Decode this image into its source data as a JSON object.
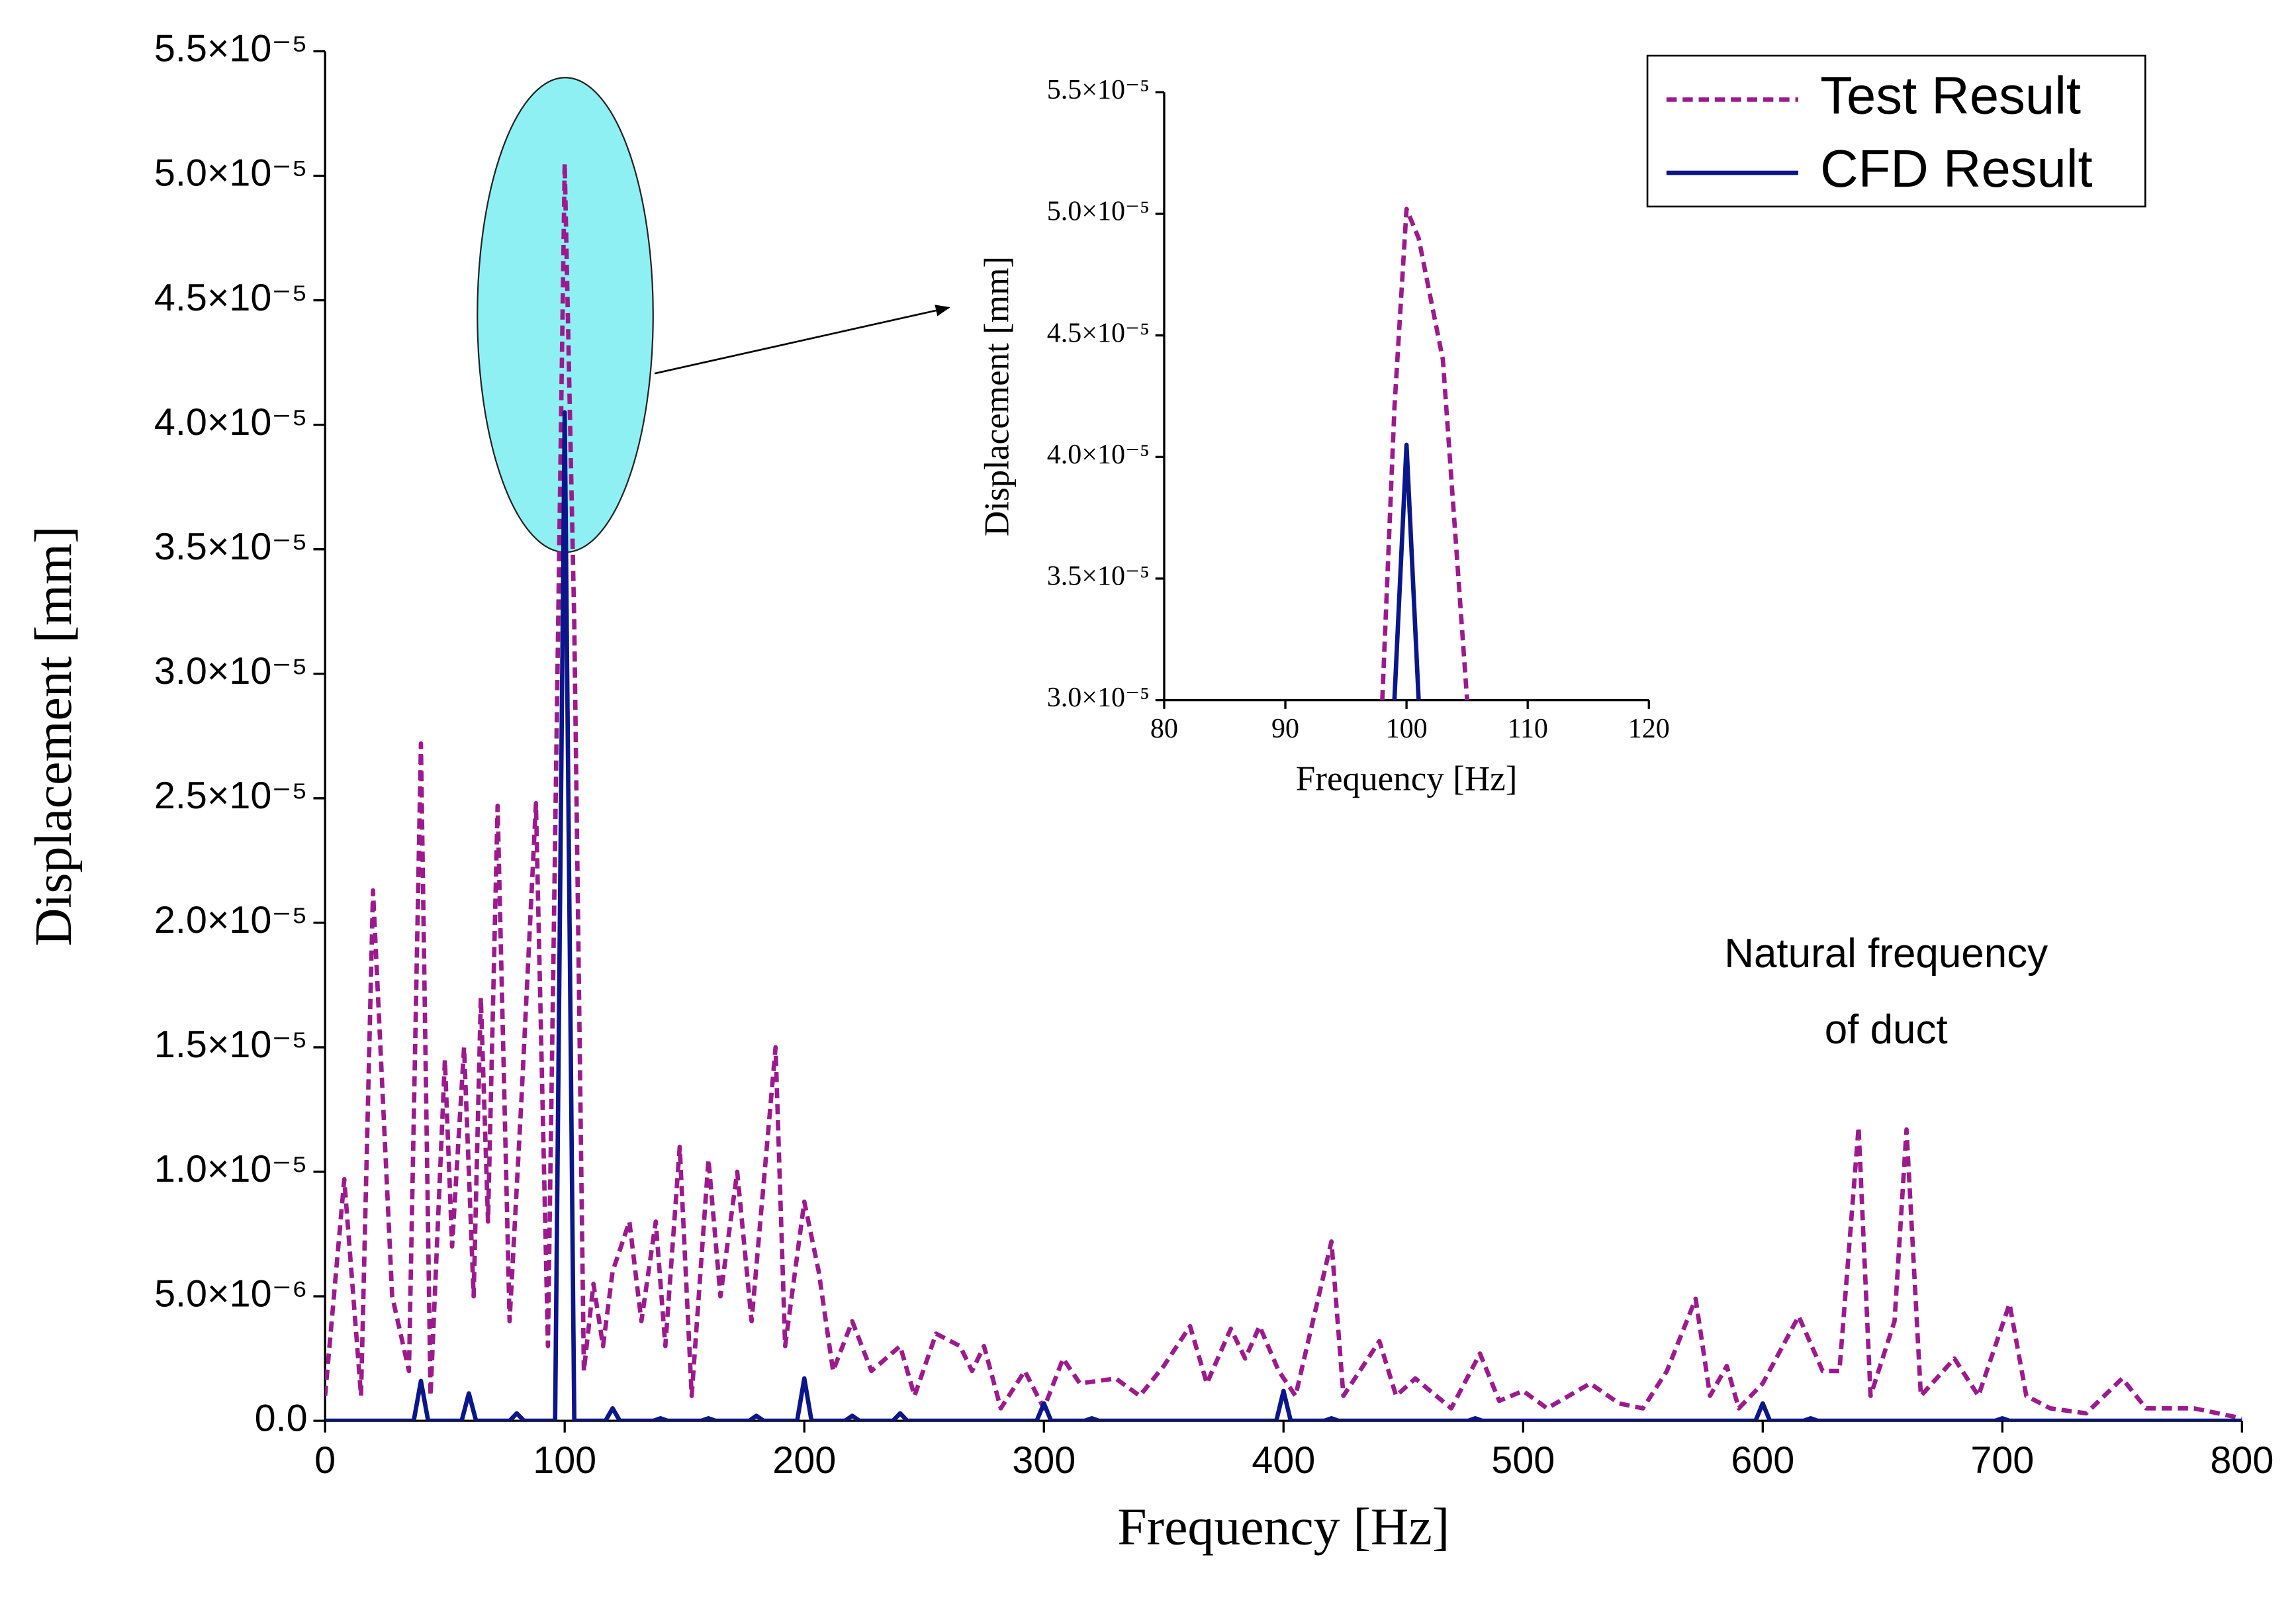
{
  "chart_data": [
    {
      "type": "line",
      "xlabel": "Frequency [Hz]",
      "ylabel": "Displacement [mm]",
      "xlim": [
        0,
        800
      ],
      "xticks": [
        0,
        100,
        200,
        300,
        400,
        500,
        600,
        700,
        800
      ],
      "ylim": [
        0,
        5.5e-05
      ],
      "yticks": [
        {
          "value": 0,
          "label": "0.0"
        },
        {
          "value": 5e-06,
          "label": "5.0×10⁻⁶"
        },
        {
          "value": 1e-05,
          "label": "1.0×10⁻⁵"
        },
        {
          "value": 1.5e-05,
          "label": "1.5×10⁻⁵"
        },
        {
          "value": 2e-05,
          "label": "2.0×10⁻⁵"
        },
        {
          "value": 2.5e-05,
          "label": "2.5×10⁻⁵"
        },
        {
          "value": 3e-05,
          "label": "3.0×10⁻⁵"
        },
        {
          "value": 3.5e-05,
          "label": "3.5×10⁻⁵"
        },
        {
          "value": 4e-05,
          "label": "4.0×10⁻⁵"
        },
        {
          "value": 4.5e-05,
          "label": "4.5×10⁻⁵"
        },
        {
          "value": 5e-05,
          "label": "5.0×10⁻⁵"
        },
        {
          "value": 5.5e-05,
          "label": "5.5×10⁻⁵"
        }
      ],
      "legend": "top-right",
      "annotation": [
        "Natural frequency",
        "of duct"
      ],
      "series": [
        {
          "name": "Test Result",
          "color": "#9c1a8e",
          "style": "dashed",
          "x": [
            0,
            8,
            15,
            20,
            28,
            35,
            40,
            44,
            50,
            53,
            58,
            62,
            65,
            68,
            72,
            77,
            82,
            88,
            93,
            100,
            104,
            108,
            112,
            116,
            120,
            127,
            132,
            138,
            142,
            148,
            153,
            160,
            165,
            172,
            178,
            188,
            192,
            200,
            206,
            212,
            220,
            228,
            240,
            246,
            255,
            265,
            270,
            275,
            282,
            292,
            300,
            308,
            315,
            330,
            340,
            350,
            361,
            368,
            378,
            384,
            390,
            398,
            405,
            420,
            425,
            440,
            447,
            455,
            470,
            482,
            490,
            500,
            510,
            528,
            540,
            550,
            560,
            572,
            578,
            585,
            590,
            600,
            615,
            625,
            632,
            640,
            645,
            655,
            660,
            666,
            680,
            690,
            703,
            710,
            720,
            735,
            750,
            760,
            780,
            800
          ],
          "values": [
            1e-06,
            9.7e-06,
            1e-06,
            2.13e-05,
            5e-06,
            2e-06,
            2.72e-05,
            1e-06,
            1.45e-05,
            7e-06,
            1.5e-05,
            5e-06,
            1.7e-05,
            8e-06,
            2.47e-05,
            4e-06,
            1.3e-05,
            2.48e-05,
            3e-06,
            5.05e-05,
            3.2e-05,
            2e-06,
            5.5e-06,
            3e-06,
            6e-06,
            8e-06,
            4e-06,
            8e-06,
            3e-06,
            1.1e-05,
            1e-06,
            1.05e-05,
            5e-06,
            1e-05,
            4e-06,
            1.5e-05,
            3e-06,
            8.8e-06,
            6e-06,
            2e-06,
            4e-06,
            2e-06,
            3e-06,
            1e-06,
            3.5e-06,
            3e-06,
            2e-06,
            3e-06,
            5e-07,
            2e-06,
            5e-07,
            2.5e-06,
            1.5e-06,
            1.7e-06,
            1e-06,
            2.2e-06,
            3.8e-06,
            1.5e-06,
            3.7e-06,
            2.5e-06,
            3.8e-06,
            2e-06,
            1e-06,
            7.2e-06,
            1e-06,
            3.2e-06,
            1e-06,
            1.7e-06,
            5e-07,
            2.7e-06,
            8e-07,
            1.2e-06,
            5e-07,
            1.5e-06,
            7e-07,
            5e-07,
            2e-06,
            4.9e-06,
            1e-06,
            2.2e-06,
            5e-07,
            1.5e-06,
            4.2e-06,
            2e-06,
            2e-06,
            1.18e-05,
            1e-06,
            4e-06,
            1.17e-05,
            1e-06,
            2.5e-06,
            1e-06,
            4.7e-06,
            1e-06,
            5e-07,
            3e-07,
            1.7e-06,
            5e-07,
            5e-07,
            1e-07
          ]
        },
        {
          "name": "CFD Result",
          "color": "#0b168a",
          "style": "solid",
          "x": [
            0,
            37,
            40,
            43,
            57,
            60,
            63,
            77,
            80,
            83,
            96,
            100,
            104,
            117,
            120,
            123,
            137,
            140,
            143,
            157,
            160,
            163,
            177,
            180,
            183,
            197,
            200,
            203,
            217,
            220,
            223,
            237,
            240,
            243,
            297,
            300,
            303,
            317,
            320,
            323,
            397,
            400,
            403,
            417,
            420,
            423,
            477,
            480,
            483,
            597,
            600,
            603,
            617,
            620,
            623,
            697,
            700,
            703,
            800
          ],
          "values": [
            0,
            0,
            1.6e-06,
            0,
            0,
            1.1e-06,
            0,
            0,
            3e-07,
            0,
            0,
            4.05e-05,
            0,
            0,
            5e-07,
            0,
            0,
            1e-07,
            0,
            0,
            1e-07,
            0,
            0,
            2e-07,
            0,
            0,
            1.7e-06,
            0,
            0,
            2e-07,
            0,
            0,
            3e-07,
            0,
            0,
            7e-07,
            0,
            0,
            1e-07,
            0,
            0,
            1.2e-06,
            0,
            0,
            1e-07,
            0,
            0,
            1e-07,
            0,
            0,
            7e-07,
            0,
            0,
            1e-07,
            0,
            0,
            1e-07,
            0,
            0
          ]
        }
      ]
    },
    {
      "type": "line",
      "xlabel": "Frequency [Hz]",
      "ylabel": "Displacement [mm]",
      "xlim": [
        80,
        120
      ],
      "xticks": [
        80,
        90,
        100,
        110,
        120
      ],
      "ylim": [
        3e-05,
        5.5e-05
      ],
      "yticks": [
        {
          "value": 3e-05,
          "label": "3.0×10⁻⁵"
        },
        {
          "value": 3.5e-05,
          "label": "3.5×10⁻⁵"
        },
        {
          "value": 4e-05,
          "label": "4.0×10⁻⁵"
        },
        {
          "value": 4.5e-05,
          "label": "4.5×10⁻⁵"
        },
        {
          "value": 5e-05,
          "label": "5.0×10⁻⁵"
        },
        {
          "value": 5.5e-05,
          "label": "5.5×10⁻⁵"
        }
      ],
      "series": [
        {
          "color": "#9c1a8e",
          "style": "dashed",
          "x": [
            98,
            99,
            100,
            101,
            103,
            105
          ],
          "values": [
            3e-05,
            4.2e-05,
            5.02e-05,
            4.9e-05,
            4.4e-05,
            3e-05
          ]
        },
        {
          "color": "#0b168a",
          "style": "solid",
          "x": [
            99,
            100,
            101
          ],
          "values": [
            3e-05,
            4.05e-05,
            3e-05
          ]
        }
      ]
    }
  ]
}
